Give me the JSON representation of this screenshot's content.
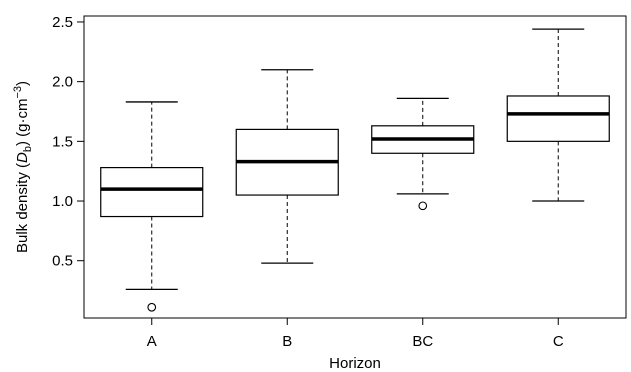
{
  "chart_data": {
    "type": "box",
    "xlabel": "Horizon",
    "ylabel_main": "Bulk density (",
    "ylabel_symbol": "D",
    "ylabel_subscript": "b",
    "ylabel_units": ") (g·cm",
    "ylabel_superscript": "−3",
    "ylabel_close": ")",
    "ylim": [
      0.02,
      2.55
    ],
    "yticks": [
      0.5,
      1.0,
      1.5,
      2.0,
      2.5
    ],
    "ytick_labels": [
      "0.5",
      "1.0",
      "1.5",
      "2.0",
      "2.5"
    ],
    "grid": false,
    "categories": [
      "A",
      "B",
      "BC",
      "C"
    ],
    "boxes": [
      {
        "category": "A",
        "whisker_low": 0.26,
        "q1": 0.87,
        "median": 1.1,
        "q3": 1.28,
        "whisker_high": 1.83,
        "outliers": [
          0.11
        ]
      },
      {
        "category": "B",
        "whisker_low": 0.48,
        "q1": 1.05,
        "median": 1.33,
        "q3": 1.6,
        "whisker_high": 2.1,
        "outliers": []
      },
      {
        "category": "BC",
        "whisker_low": 1.06,
        "q1": 1.4,
        "median": 1.52,
        "q3": 1.63,
        "whisker_high": 1.86,
        "outliers": [
          0.96
        ]
      },
      {
        "category": "C",
        "whisker_low": 1.0,
        "q1": 1.5,
        "median": 1.73,
        "q3": 1.88,
        "whisker_high": 2.44,
        "outliers": []
      }
    ]
  }
}
